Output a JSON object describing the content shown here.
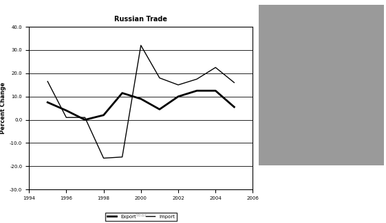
{
  "chart_data": {
    "type": "line",
    "title": "Russian Trade",
    "x": [
      1995,
      1996,
      1997,
      1998,
      1999,
      2000,
      2001,
      2002,
      2003,
      2004,
      2005
    ],
    "series": [
      {
        "name": "Export",
        "color": "#000000",
        "line_style": "solid",
        "values": [
          7.5,
          4,
          0,
          2,
          11.5,
          9,
          4.5,
          10,
          12.5,
          12.5,
          5.5
        ]
      },
      {
        "name": "Import",
        "color": "#000000",
        "line_style": "solid",
        "values": [
          16.5,
          1,
          1,
          -16.5,
          -16,
          32,
          18,
          15,
          17.5,
          22.5,
          16
        ]
      }
    ],
    "x_label": "Year",
    "y_label": "Percent Change",
    "xlim": [
      1994,
      2006
    ],
    "xticks": [
      1994,
      1996,
      1998,
      2000,
      2002,
      2004,
      2006
    ],
    "ylim": [
      -30,
      40
    ],
    "yticks": [
      {
        "value": -30,
        "label": "-30.0"
      },
      {
        "value": -20,
        "label": "-20.0"
      },
      {
        "value": -10,
        "label": "-10.0"
      },
      {
        "value": 0,
        "label": "0.0"
      },
      {
        "value": 10,
        "label": "10.0"
      },
      {
        "value": 20,
        "label": "20.0"
      },
      {
        "value": 30,
        "label": "30.0"
      },
      {
        "value": 40,
        "label": "40.0"
      }
    ],
    "grid": true,
    "legend": "lower center"
  }
}
